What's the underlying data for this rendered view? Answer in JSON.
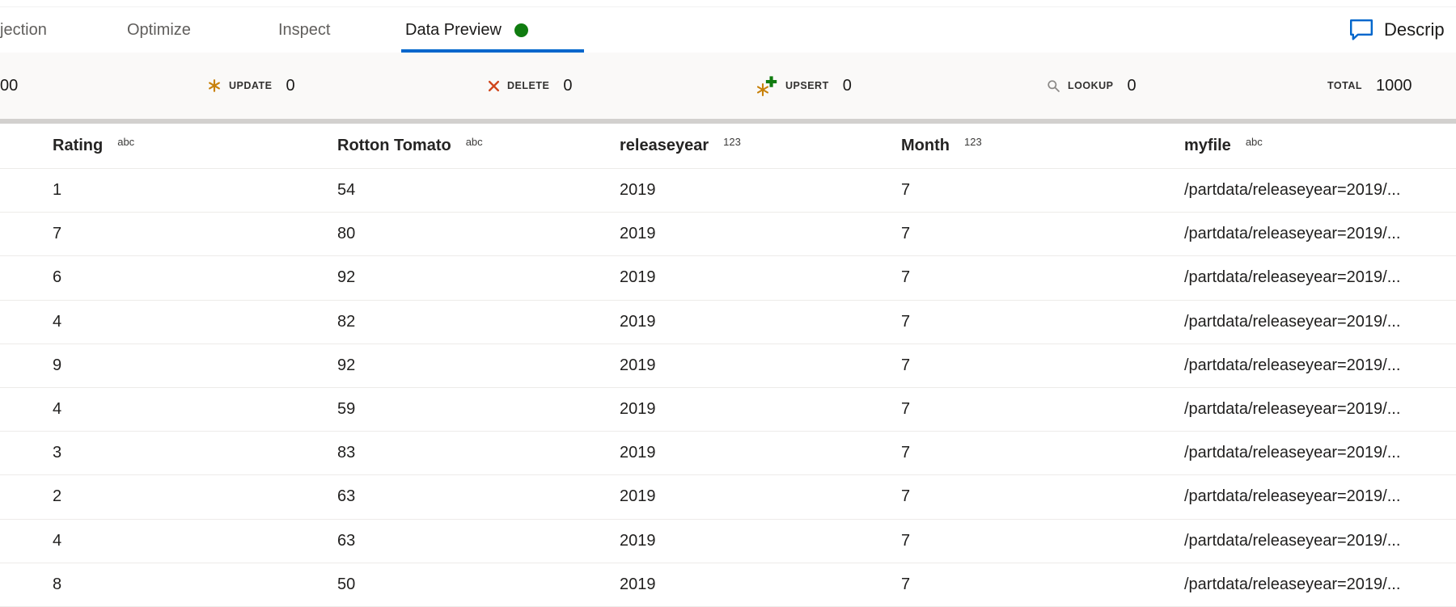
{
  "header_tabs": {
    "items": [
      {
        "label": "jection",
        "active": false,
        "status_dot": false
      },
      {
        "label": "Optimize",
        "active": false,
        "status_dot": false
      },
      {
        "label": "Inspect",
        "active": false,
        "status_dot": false
      },
      {
        "label": "Data Preview",
        "active": true,
        "status_dot": true
      }
    ],
    "description_label": "Descrip"
  },
  "stats_bar": {
    "insert_partial_value": "00",
    "items": [
      {
        "id": "update",
        "label": "UPDATE",
        "value": "0",
        "icon": "asterisk-icon"
      },
      {
        "id": "delete",
        "label": "DELETE",
        "value": "0",
        "icon": "delete-x-icon"
      },
      {
        "id": "upsert",
        "label": "UPSERT",
        "value": "0",
        "icon": "upsert-plus-icon"
      },
      {
        "id": "lookup",
        "label": "LOOKUP",
        "value": "0",
        "icon": "lookup-magnifier-icon"
      }
    ],
    "total": {
      "label": "TOTAL",
      "value": "1000"
    }
  },
  "data_table": {
    "columns": [
      {
        "name": "Rating",
        "type_badge": "abc"
      },
      {
        "name": "Rotton Tomato",
        "type_badge": "abc"
      },
      {
        "name": "releaseyear",
        "type_badge": "123"
      },
      {
        "name": "Month",
        "type_badge": "123"
      },
      {
        "name": "myfile",
        "type_badge": "abc"
      }
    ],
    "rows": [
      [
        "1",
        "54",
        "2019",
        "7",
        "/partdata/releaseyear=2019/..."
      ],
      [
        "7",
        "80",
        "2019",
        "7",
        "/partdata/releaseyear=2019/..."
      ],
      [
        "6",
        "92",
        "2019",
        "7",
        "/partdata/releaseyear=2019/..."
      ],
      [
        "4",
        "82",
        "2019",
        "7",
        "/partdata/releaseyear=2019/..."
      ],
      [
        "9",
        "92",
        "2019",
        "7",
        "/partdata/releaseyear=2019/..."
      ],
      [
        "4",
        "59",
        "2019",
        "7",
        "/partdata/releaseyear=2019/..."
      ],
      [
        "3",
        "83",
        "2019",
        "7",
        "/partdata/releaseyear=2019/..."
      ],
      [
        "2",
        "63",
        "2019",
        "7",
        "/partdata/releaseyear=2019/..."
      ],
      [
        "4",
        "63",
        "2019",
        "7",
        "/partdata/releaseyear=2019/..."
      ],
      [
        "8",
        "50",
        "2019",
        "7",
        "/partdata/releaseyear=2019/..."
      ]
    ]
  },
  "colors": {
    "accent_blue": "#0066cc",
    "status_green": "#107c10",
    "update_gold": "#c8810a",
    "delete_red": "#d0451b",
    "lookup_gray": "#8a8886",
    "stats_bg": "#faf9f8",
    "divider": "#d2d0ce",
    "row_border": "#edebe9"
  }
}
